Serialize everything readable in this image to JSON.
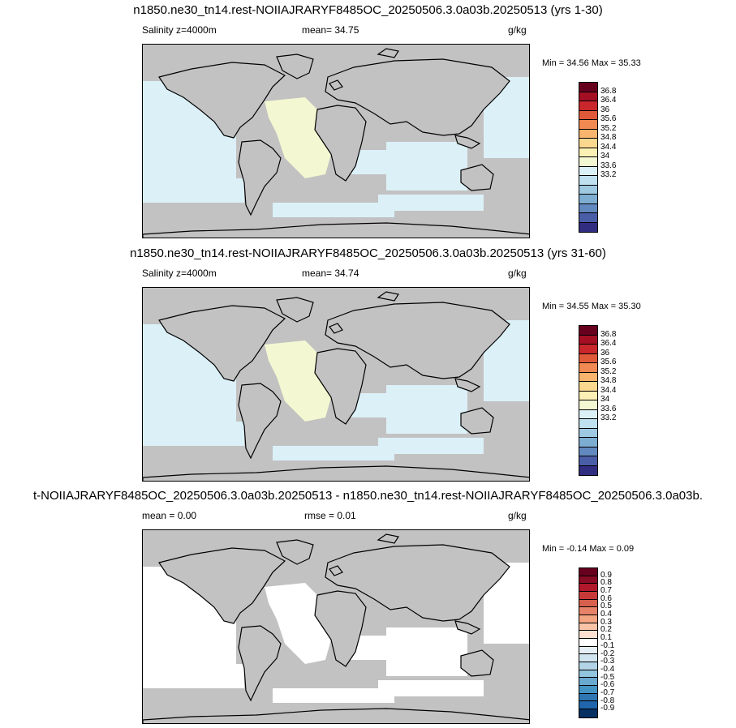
{
  "panels": [
    {
      "title": "n1850.ne30_tn14.rest-NOIIAJRARYF8485OC_20250506.3.0a03b.20250513 (yrs 1-30)",
      "left_label": "Salinity z=4000m",
      "center_label": "mean=  34.75",
      "units": "g/kg",
      "minmax": "Min =  34.56 Max =  35.33",
      "ocean_fill": "#dcf0f8",
      "highlight_fill": "#f4f8d2",
      "colorbar": {
        "labels": [
          "36.8",
          "36.4",
          "36",
          "35.6",
          "35.2",
          "34.8",
          "34.4",
          "34",
          "33.6",
          "33.2"
        ],
        "colors": [
          "#67001f",
          "#a50f24",
          "#c9272c",
          "#e05a3a",
          "#f18a52",
          "#f9b46d",
          "#fbd88f",
          "#fcf1b4",
          "#f4f8d2",
          "#dcf0f8",
          "#bfe0ee",
          "#9ec9e1",
          "#7eadd2",
          "#6288c0",
          "#4a5ea8",
          "#312d80"
        ]
      }
    },
    {
      "title": "n1850.ne30_tn14.rest-NOIIAJRARYF8485OC_20250506.3.0a03b.20250513 (yrs 31-60)",
      "left_label": "Salinity z=4000m",
      "center_label": "mean=  34.74",
      "units": "g/kg",
      "minmax": "Min =  34.55 Max =  35.30",
      "ocean_fill": "#dcf0f8",
      "highlight_fill": "#f4f8d2",
      "colorbar": {
        "labels": [
          "36.8",
          "36.4",
          "36",
          "35.6",
          "35.2",
          "34.8",
          "34.4",
          "34",
          "33.6",
          "33.2"
        ],
        "colors": [
          "#67001f",
          "#a50f24",
          "#c9272c",
          "#e05a3a",
          "#f18a52",
          "#f9b46d",
          "#fbd88f",
          "#fcf1b4",
          "#f4f8d2",
          "#dcf0f8",
          "#bfe0ee",
          "#9ec9e1",
          "#7eadd2",
          "#6288c0",
          "#4a5ea8",
          "#312d80"
        ]
      }
    },
    {
      "title": "t-NOIIAJRARYF8485OC_20250506.3.0a03b.20250513 - n1850.ne30_tn14.rest-NOIIAJRARYF8485OC_20250506.3.0a03b.",
      "left_label": "mean =   0.00",
      "center_label": "rmse =   0.01",
      "units": "g/kg",
      "minmax": "Min =  -0.14 Max =   0.09",
      "ocean_fill": "#ffffff",
      "highlight_fill": "#ffffff",
      "colorbar": {
        "labels": [
          "0.9",
          "0.8",
          "0.7",
          "0.6",
          "0.5",
          "0.4",
          "0.3",
          "0.2",
          "0.1",
          "-0.1",
          "-0.2",
          "-0.3",
          "-0.4",
          "-0.5",
          "-0.6",
          "-0.7",
          "-0.8",
          "-0.9"
        ],
        "colors": [
          "#67001f",
          "#8a0b25",
          "#b2182b",
          "#c83a3a",
          "#d6604d",
          "#e58267",
          "#f4a582",
          "#f8c4a8",
          "#fde0d1",
          "#ffffff",
          "#e6eff5",
          "#d1e5f0",
          "#b3d4e6",
          "#92c5de",
          "#6aa9cf",
          "#4393c3",
          "#2f76b2",
          "#2166ac",
          "#053061"
        ]
      }
    }
  ]
}
